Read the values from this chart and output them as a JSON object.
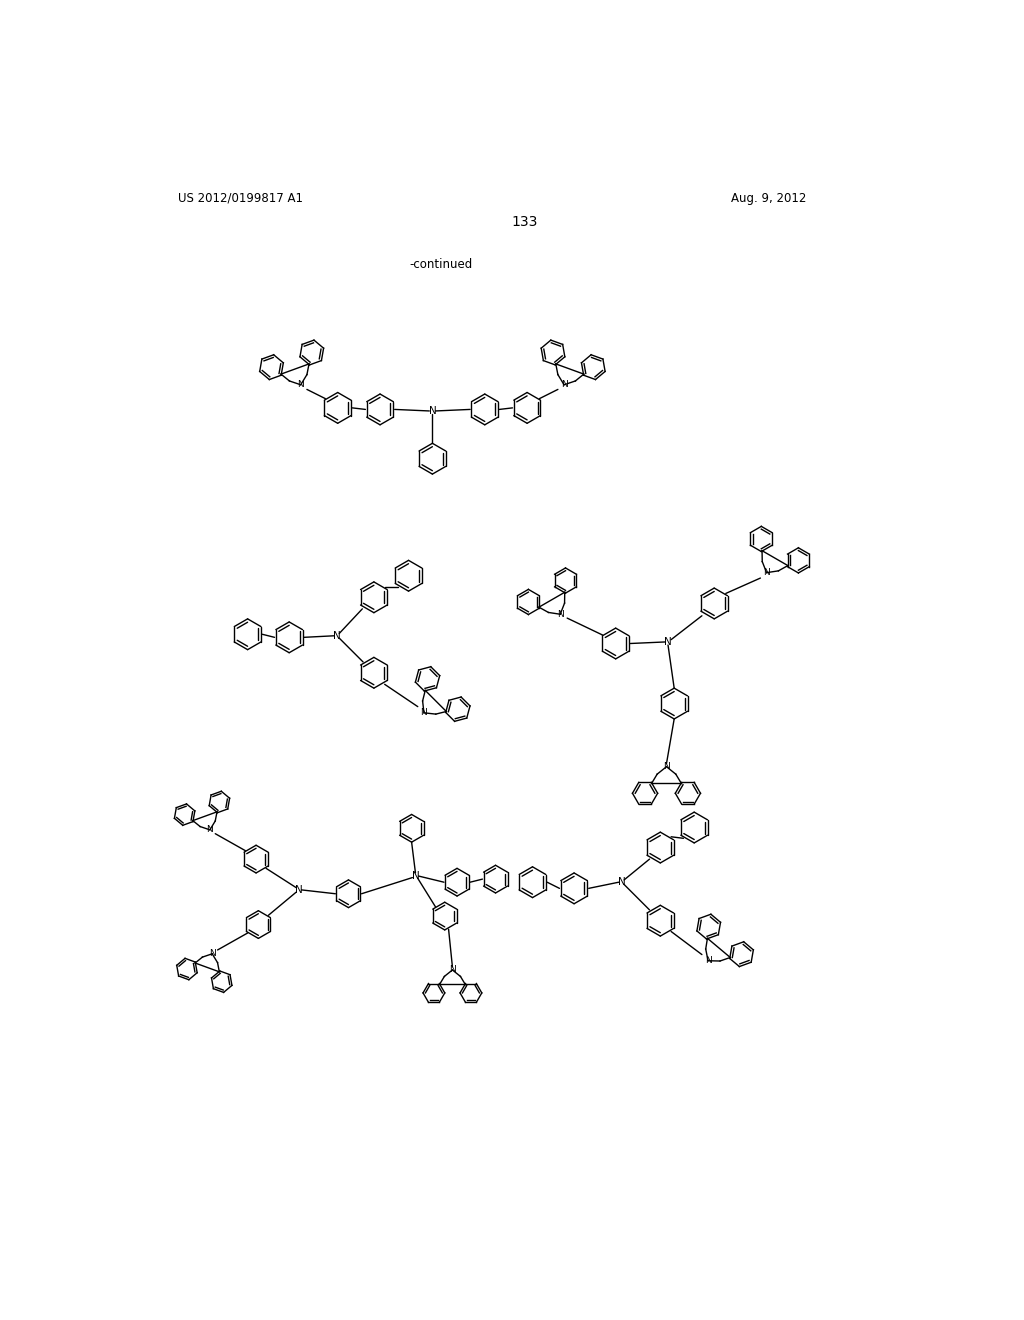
{
  "page_number": "133",
  "top_left_text": "US 2012/0199817 A1",
  "top_right_text": "Aug. 9, 2012",
  "continued_text": "-continued",
  "background_color": "#ffffff",
  "text_color": "#000000",
  "line_color": "#000000",
  "line_width": 1.0,
  "fig_width": 10.24,
  "fig_height": 13.2,
  "dpi": 100
}
